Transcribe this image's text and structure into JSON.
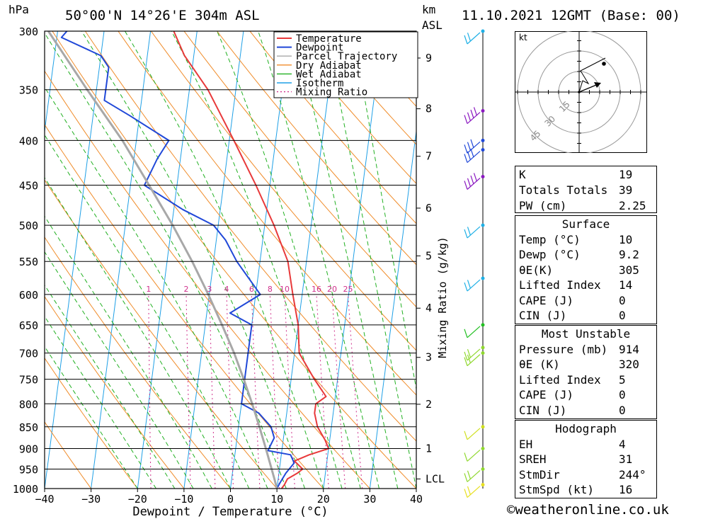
{
  "header": {
    "location": "50°00'N 14°26'E 304m ASL",
    "datetime": "11.10.2021 12GMT (Base: 00)",
    "p_unit": "hPa",
    "km_unit": "km",
    "asl_unit": "ASL"
  },
  "footer": {
    "credit": "©weatheronline.co.uk"
  },
  "chart_data": {
    "type": "line",
    "title": "50°00'N 14°26'E 304m ASL",
    "xlabel": "Dewpoint / Temperature (°C)",
    "ylabel": "hPa",
    "y2label": "Mixing Ratio (g/kg)",
    "y3label": "km ASL",
    "xlim": [
      -40,
      40
    ],
    "ylim": [
      1000,
      300
    ],
    "y_scale": "log",
    "x_ticks": [
      -40,
      -30,
      -20,
      -10,
      0,
      10,
      20,
      30,
      40
    ],
    "pressure_ticks": [
      300,
      350,
      400,
      450,
      500,
      550,
      600,
      650,
      700,
      750,
      800,
      850,
      900,
      950,
      1000
    ],
    "height_ticks": [
      {
        "label": "9",
        "p": 322
      },
      {
        "label": "8",
        "p": 368
      },
      {
        "label": "7",
        "p": 417
      },
      {
        "label": "6",
        "p": 478
      },
      {
        "label": "5",
        "p": 542
      },
      {
        "label": "4",
        "p": 622
      },
      {
        "label": "3",
        "p": 708
      },
      {
        "label": "2",
        "p": 801
      },
      {
        "label": "1",
        "p": 900
      },
      {
        "label": "LCL",
        "p": 975
      }
    ],
    "mixing_ratio_labels": [
      "1",
      "2",
      "3",
      "4",
      "6",
      "8",
      "10",
      "16",
      "20",
      "25"
    ],
    "mixing_ratio_values": [
      1,
      2,
      3,
      4,
      6,
      8,
      10,
      16,
      20,
      25
    ],
    "legend": {
      "placement": "top-right",
      "items": [
        {
          "label": "Temperature",
          "color": "#e8393a"
        },
        {
          "label": "Dewpoint",
          "color": "#2048d8"
        },
        {
          "label": "Parcel Trajectory",
          "color": "#a8a8a8"
        },
        {
          "label": "Dry Adiabat",
          "color": "#f08c2a"
        },
        {
          "label": "Wet Adiabat",
          "color": "#22b022"
        },
        {
          "label": "Isotherm",
          "color": "#1fa0e6"
        },
        {
          "label": "Mixing Ratio",
          "color": "#d0308c"
        }
      ]
    },
    "series": [
      {
        "name": "Temperature",
        "color": "#e8393a",
        "points": [
          [
            1000,
            11
          ],
          [
            990,
            11.5
          ],
          [
            975,
            12
          ],
          [
            960,
            14
          ],
          [
            950,
            15
          ],
          [
            930,
            13
          ],
          [
            915,
            16
          ],
          [
            900,
            20
          ],
          [
            880,
            19
          ],
          [
            850,
            17
          ],
          [
            820,
            16
          ],
          [
            800,
            16
          ],
          [
            785,
            18
          ],
          [
            750,
            15
          ],
          [
            700,
            11
          ],
          [
            650,
            10
          ],
          [
            600,
            8
          ],
          [
            550,
            6
          ],
          [
            500,
            2
          ],
          [
            450,
            -3
          ],
          [
            400,
            -9
          ],
          [
            350,
            -16
          ],
          [
            320,
            -22
          ],
          [
            300,
            -25
          ]
        ]
      },
      {
        "name": "Dewpoint",
        "color": "#2048d8",
        "points": [
          [
            1000,
            10
          ],
          [
            985,
            10.5
          ],
          [
            960,
            11.5
          ],
          [
            935,
            13
          ],
          [
            915,
            12
          ],
          [
            905,
            7
          ],
          [
            875,
            8
          ],
          [
            850,
            7
          ],
          [
            820,
            4
          ],
          [
            800,
            0
          ],
          [
            700,
            0
          ],
          [
            650,
            0
          ],
          [
            630,
            -5
          ],
          [
            600,
            1
          ],
          [
            550,
            -5
          ],
          [
            520,
            -8
          ],
          [
            500,
            -11
          ],
          [
            480,
            -18
          ],
          [
            450,
            -27
          ],
          [
            420,
            -25
          ],
          [
            400,
            -23
          ],
          [
            375,
            -32
          ],
          [
            360,
            -38
          ],
          [
            330,
            -38
          ],
          [
            320,
            -40
          ],
          [
            305,
            -49
          ],
          [
            300,
            -48
          ]
        ]
      },
      {
        "name": "Parcel Trajectory",
        "color": "#a8a8a8",
        "points": [
          [
            1000,
            10
          ],
          [
            975,
            9.2
          ],
          [
            900,
            6.5
          ],
          [
            850,
            4.5
          ],
          [
            800,
            2.3
          ],
          [
            750,
            -0.2
          ],
          [
            700,
            -3
          ],
          [
            650,
            -6.4
          ],
          [
            600,
            -10.2
          ],
          [
            550,
            -14.6
          ],
          [
            500,
            -19.8
          ],
          [
            450,
            -26
          ],
          [
            400,
            -33
          ],
          [
            350,
            -42
          ],
          [
            300,
            -52
          ]
        ]
      }
    ],
    "wind_barbs": [
      {
        "p": 300,
        "color": "#1fb0e6",
        "speed_kt": 20
      },
      {
        "p": 370,
        "color": "#8a18c0",
        "speed_kt": 35
      },
      {
        "p": 400,
        "color": "#2048d8",
        "speed_kt": 30
      },
      {
        "p": 410,
        "color": "#2048d8",
        "speed_kt": 30
      },
      {
        "p": 440,
        "color": "#8a18c0",
        "speed_kt": 35
      },
      {
        "p": 500,
        "color": "#1fb0e6",
        "speed_kt": 15
      },
      {
        "p": 575,
        "color": "#1fb0e6",
        "speed_kt": 20
      },
      {
        "p": 650,
        "color": "#22c022",
        "speed_kt": 5
      },
      {
        "p": 690,
        "color": "#90d830",
        "speed_kt": 15
      },
      {
        "p": 700,
        "color": "#90d830",
        "speed_kt": 15
      },
      {
        "p": 850,
        "color": "#d0e020",
        "speed_kt": 10
      },
      {
        "p": 900,
        "color": "#90d830",
        "speed_kt": 10
      },
      {
        "p": 950,
        "color": "#90d830",
        "speed_kt": 15
      },
      {
        "p": 990,
        "color": "#e8e020",
        "speed_kt": 15
      }
    ],
    "hodograph": {
      "unit_label": "kt",
      "ring_labels": [
        "15",
        "30",
        "45"
      ],
      "storm_motion_marker": "dot"
    }
  },
  "indices": {
    "rows": [
      {
        "k": "K",
        "v": "19"
      },
      {
        "k": "Totals Totals",
        "v": "39"
      },
      {
        "k": "PW (cm)",
        "v": "2.25"
      }
    ],
    "surface": {
      "title": "Surface",
      "rows": [
        {
          "k": "Temp (°C)",
          "v": "10"
        },
        {
          "k": "Dewp (°C)",
          "v": "9.2"
        },
        {
          "k": "θE(K)",
          "v": "305"
        },
        {
          "k": "Lifted Index",
          "v": "14"
        },
        {
          "k": "CAPE (J)",
          "v": "0"
        },
        {
          "k": "CIN (J)",
          "v": "0"
        }
      ]
    },
    "most_unstable": {
      "title": "Most Unstable",
      "rows": [
        {
          "k": "Pressure (mb)",
          "v": "914"
        },
        {
          "k": "θE (K)",
          "v": "320"
        },
        {
          "k": "Lifted Index",
          "v": "5"
        },
        {
          "k": "CAPE (J)",
          "v": "0"
        },
        {
          "k": "CIN (J)",
          "v": "0"
        }
      ]
    },
    "hodograph_box": {
      "title": "Hodograph",
      "rows": [
        {
          "k": "EH",
          "v": "4"
        },
        {
          "k": "SREH",
          "v": "31"
        },
        {
          "k": "StmDir",
          "v": "244°"
        },
        {
          "k": "StmSpd (kt)",
          "v": "16"
        }
      ]
    }
  }
}
